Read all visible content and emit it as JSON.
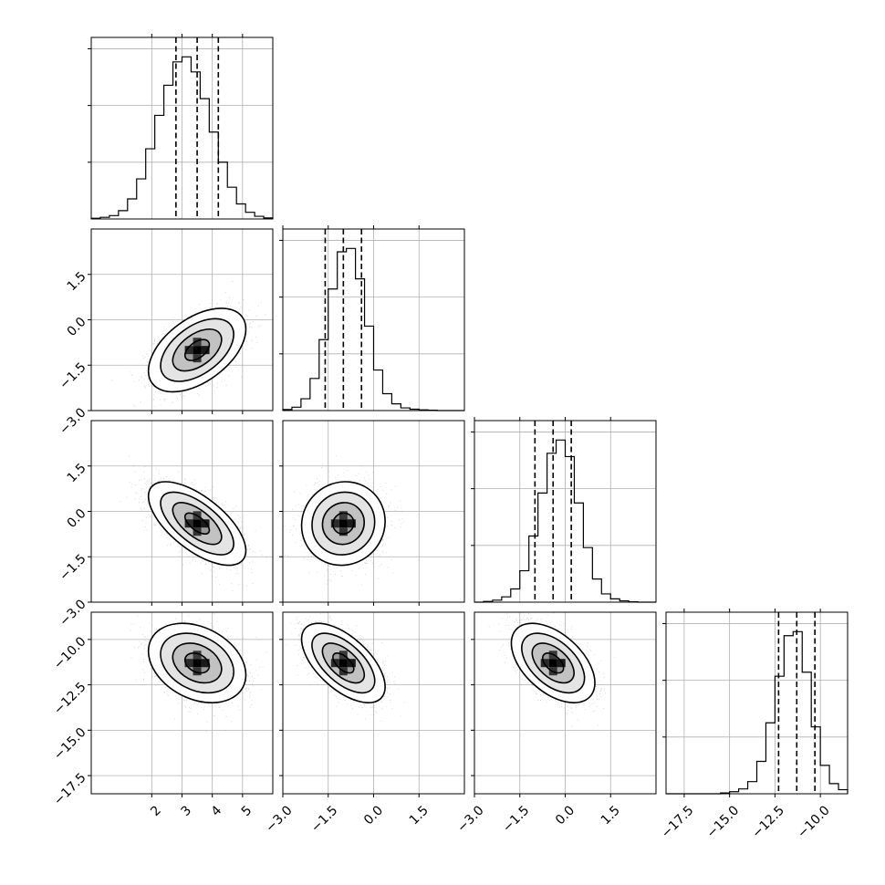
{
  "chart_data": {
    "type": "corner",
    "description_free": true,
    "parameters": [
      {
        "range": [
          0.0,
          6.0
        ],
        "ticks": [
          2,
          3,
          4,
          5
        ],
        "tick_labels": [
          "2",
          "3",
          "4",
          "5"
        ],
        "mean": 3.5,
        "sd": 0.7,
        "quantiles": [
          2.8,
          3.5,
          4.2
        ],
        "hist": [
          2,
          5,
          10,
          25,
          60,
          120,
          210,
          310,
          400,
          470,
          485,
          440,
          360,
          260,
          170,
          95,
          45,
          20,
          8,
          3
        ]
      },
      {
        "range": [
          -3.0,
          3.0
        ],
        "ticks": [
          -3.0,
          -1.5,
          0.0,
          1.5
        ],
        "tick_labels": [
          "−3.0",
          "−1.5",
          "0.0",
          "1.5"
        ],
        "mean": -1.0,
        "sd": 0.6,
        "quantiles": [
          -1.6,
          -1.0,
          -0.4
        ],
        "hist": [
          3,
          10,
          35,
          95,
          210,
          360,
          470,
          480,
          390,
          250,
          120,
          50,
          20,
          8,
          4,
          2,
          1,
          0,
          0,
          0
        ]
      },
      {
        "range": [
          -3.0,
          3.0
        ],
        "ticks": [
          -3.0,
          -1.5,
          0.0,
          1.5
        ],
        "tick_labels": [
          "−3.0",
          "−1.5",
          "0.0",
          "1.5"
        ],
        "mean": -0.4,
        "sd": 0.6,
        "quantiles": [
          -1.0,
          -0.4,
          0.2
        ],
        "hist": [
          0,
          2,
          6,
          16,
          40,
          95,
          200,
          330,
          450,
          490,
          440,
          300,
          165,
          70,
          25,
          10,
          4,
          1,
          0,
          0
        ]
      },
      {
        "range": [
          -18.5,
          -8.5
        ],
        "ticks": [
          -17.5,
          -15.0,
          -12.5,
          -10.0
        ],
        "tick_labels": [
          "−17.5",
          "−15.0",
          "−12.5",
          "−10.0"
        ],
        "mean": -11.3,
        "sd": 0.95,
        "quantiles": [
          -12.3,
          -11.3,
          -10.3
        ],
        "hist": [
          0,
          0,
          0,
          0,
          0,
          0,
          2,
          5,
          12,
          30,
          80,
          175,
          290,
          390,
          400,
          300,
          165,
          70,
          25,
          10
        ]
      }
    ],
    "correlations": {
      "1-0": 0.5,
      "2-0": -0.65,
      "2-1": 0.05,
      "3-0": -0.3,
      "3-1": -0.6,
      "3-2": -0.5
    },
    "hist_ticks_y_count": 3,
    "contour_levels_sigma": [
      0.5,
      1.0,
      1.5,
      2.0
    ],
    "grid": true
  }
}
